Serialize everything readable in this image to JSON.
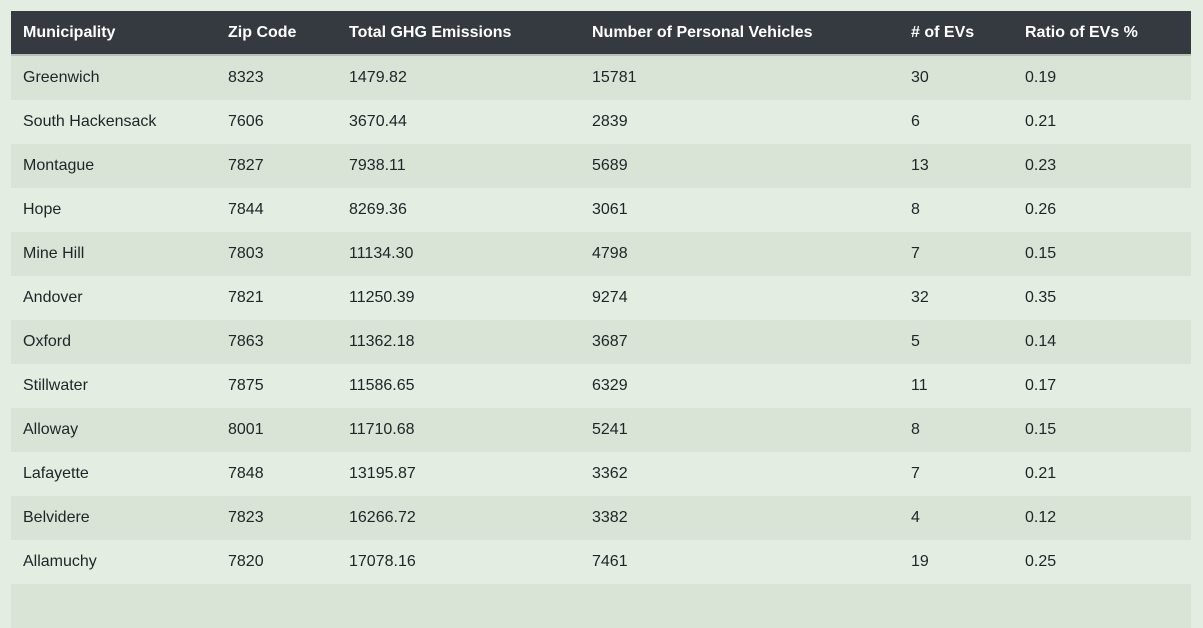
{
  "table": {
    "columns": [
      "Municipality",
      "Zip Code",
      "Total GHG Emissions",
      "Number of Personal Vehicles",
      "# of EVs",
      "Ratio of EVs %"
    ],
    "rows": [
      [
        "Greenwich",
        "8323",
        "1479.82",
        "15781",
        "30",
        "0.19"
      ],
      [
        "South Hackensack",
        "7606",
        "3670.44",
        "2839",
        "6",
        "0.21"
      ],
      [
        "Montague",
        "7827",
        "7938.11",
        "5689",
        "13",
        "0.23"
      ],
      [
        "Hope",
        "7844",
        "8269.36",
        "3061",
        "8",
        "0.26"
      ],
      [
        "Mine Hill",
        "7803",
        "11134.30",
        "4798",
        "7",
        "0.15"
      ],
      [
        "Andover",
        "7821",
        "11250.39",
        "9274",
        "32",
        "0.35"
      ],
      [
        "Oxford",
        "7863",
        "11362.18",
        "3687",
        "5",
        "0.14"
      ],
      [
        "Stillwater",
        "7875",
        "11586.65",
        "6329",
        "11",
        "0.17"
      ],
      [
        "Alloway",
        "8001",
        "11710.68",
        "5241",
        "8",
        "0.15"
      ],
      [
        "Lafayette",
        "7848",
        "13195.87",
        "3362",
        "7",
        "0.21"
      ],
      [
        "Belvidere",
        "7823",
        "16266.72",
        "3382",
        "4",
        "0.12"
      ],
      [
        "Allamuchy",
        "7820",
        "17078.16",
        "7461",
        "19",
        "0.25"
      ],
      [
        "",
        "",
        "",
        "",
        "",
        ""
      ]
    ]
  },
  "colors": {
    "header_bg": "#343a40",
    "header_text": "#ffffff",
    "row_odd": "#d9e4d7",
    "row_even": "#e3ede1",
    "text": "#212529"
  }
}
